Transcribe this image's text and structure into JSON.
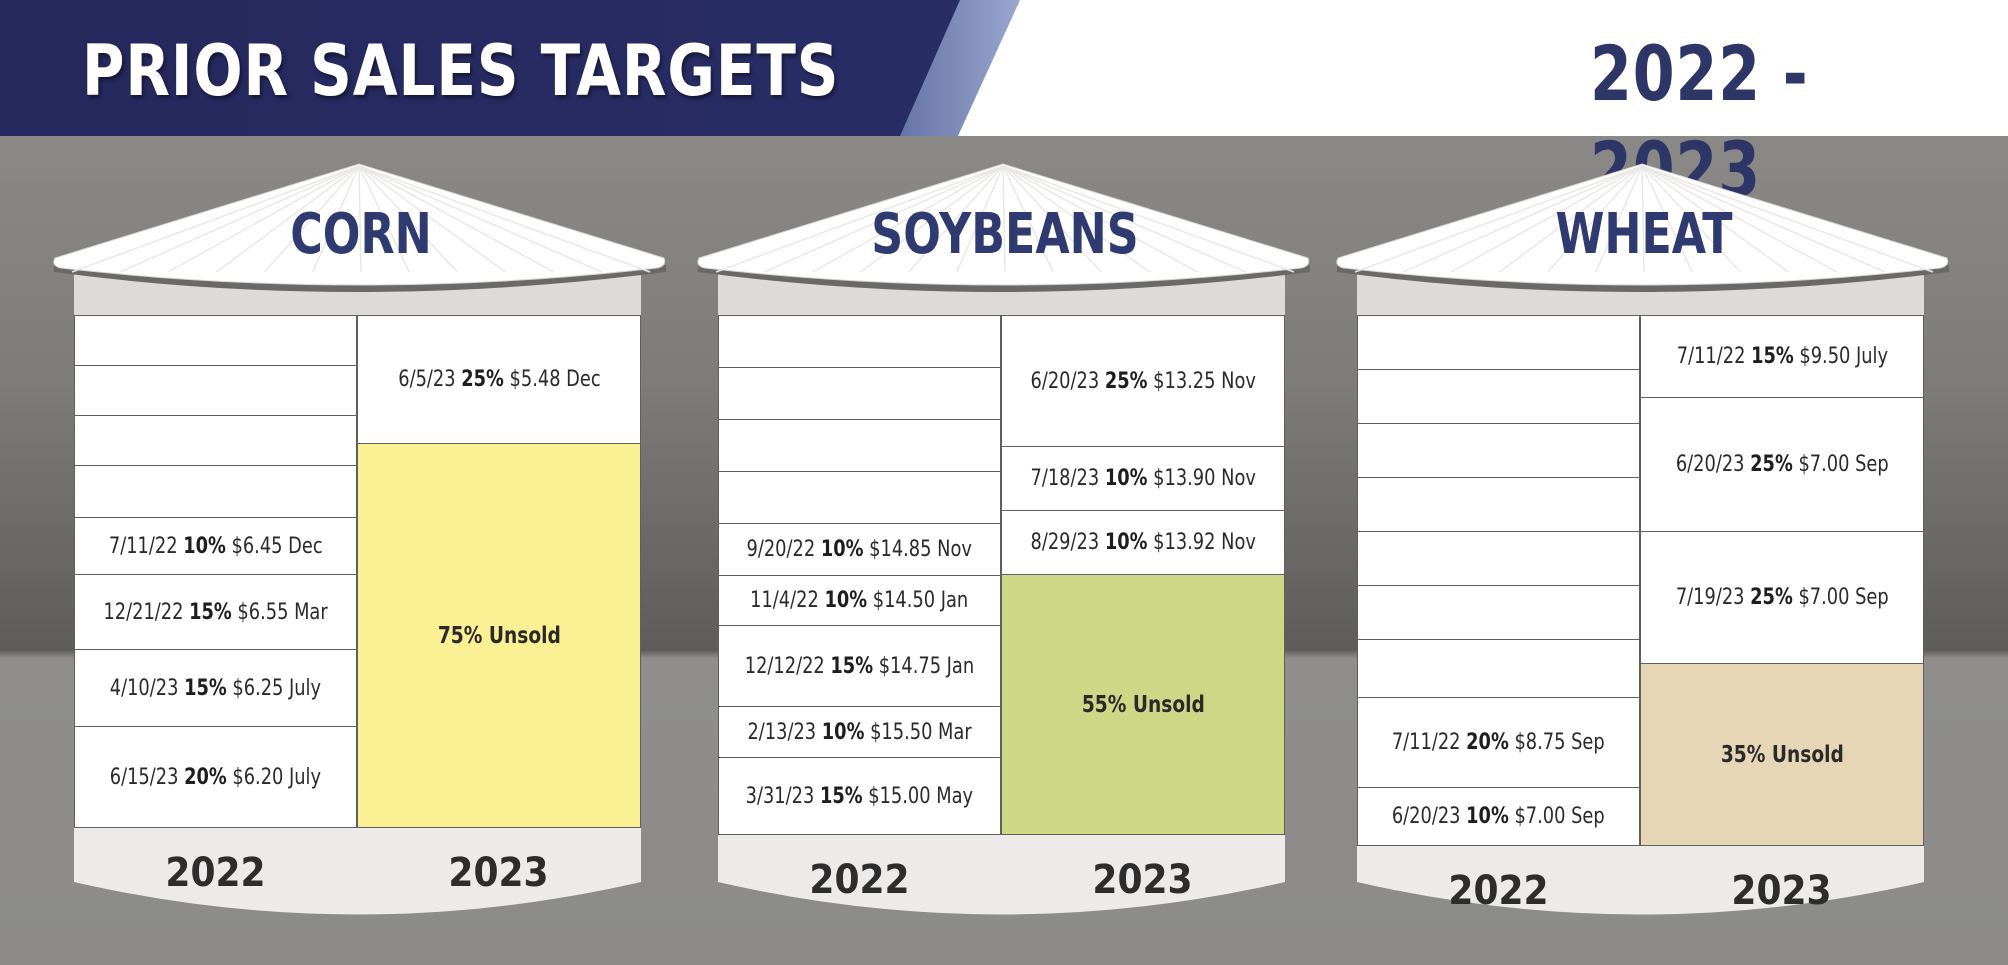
{
  "header": {
    "title": "PRIOR SALES TARGETS",
    "years": "2022 - 2023",
    "colors": {
      "navy": "#2a2e68",
      "accent": "#2e3a70"
    }
  },
  "silos": [
    {
      "name": "CORN",
      "unsold_color": "#fbf194",
      "col_2022_label": "2022",
      "col_2023_label": "2023",
      "sales_2022": [
        {
          "date": "",
          "pct": "",
          "price": ""
        },
        {
          "date": "",
          "pct": "",
          "price": ""
        },
        {
          "date": "",
          "pct": "",
          "price": ""
        },
        {
          "date": "",
          "pct": "",
          "price": ""
        },
        {
          "date": "7/11/22",
          "pct": "10%",
          "price": "$6.45 Dec"
        },
        {
          "date": "12/21/22",
          "pct": "15%",
          "price": "$6.55 Mar"
        },
        {
          "date": "4/10/23",
          "pct": "15%",
          "price": "$6.25 July"
        },
        {
          "date": "6/15/23",
          "pct": "20%",
          "price": "$6.20 July"
        }
      ],
      "sales_2023": [
        {
          "date": "6/5/23",
          "pct": "25%",
          "price": "$5.48 Dec"
        }
      ],
      "unsold_2023": "75% Unsold"
    },
    {
      "name": "SOYBEANS",
      "unsold_color": "#cdd886",
      "col_2022_label": "2022",
      "col_2023_label": "2023",
      "sales_2022": [
        {
          "date": "",
          "pct": "",
          "price": ""
        },
        {
          "date": "",
          "pct": "",
          "price": ""
        },
        {
          "date": "",
          "pct": "",
          "price": ""
        },
        {
          "date": "",
          "pct": "",
          "price": ""
        },
        {
          "date": "9/20/22",
          "pct": "10%",
          "price": "$14.85 Nov"
        },
        {
          "date": "11/4/22",
          "pct": "10%",
          "price": "$14.50 Jan"
        },
        {
          "date": "12/12/22",
          "pct": "15%",
          "price": "$14.75 Jan"
        },
        {
          "date": "2/13/23",
          "pct": "10%",
          "price": "$15.50 Mar"
        },
        {
          "date": "3/31/23",
          "pct": "15%",
          "price": "$15.00 May"
        }
      ],
      "sales_2023": [
        {
          "date": "6/20/23",
          "pct": "25%",
          "price": "$13.25 Nov"
        },
        {
          "date": "7/18/23",
          "pct": "10%",
          "price": "$13.90 Nov"
        },
        {
          "date": "8/29/23",
          "pct": "10%",
          "price": "$13.92 Nov"
        }
      ],
      "unsold_2023": "55% Unsold"
    },
    {
      "name": "WHEAT",
      "unsold_color": "#e6d6b5",
      "col_2022_label": "2022",
      "col_2023_label": "2023",
      "sales_2022": [
        {
          "date": "",
          "pct": "",
          "price": ""
        },
        {
          "date": "",
          "pct": "",
          "price": ""
        },
        {
          "date": "",
          "pct": "",
          "price": ""
        },
        {
          "date": "",
          "pct": "",
          "price": ""
        },
        {
          "date": "",
          "pct": "",
          "price": ""
        },
        {
          "date": "",
          "pct": "",
          "price": ""
        },
        {
          "date": "",
          "pct": "",
          "price": ""
        },
        {
          "date": "7/11/22",
          "pct": "20%",
          "price": "$8.75 Sep"
        },
        {
          "date": "6/20/23",
          "pct": "10%",
          "price": "$7.00 Sep"
        }
      ],
      "sales_2023": [
        {
          "date": "7/11/22",
          "pct": "15%",
          "price": "$9.50 July"
        },
        {
          "date": "6/20/23",
          "pct": "25%",
          "price": "$7.00 Sep"
        },
        {
          "date": "7/19/23",
          "pct": "25%",
          "price": "$7.00 Sep"
        }
      ],
      "unsold_2023": "35% Unsold"
    }
  ]
}
